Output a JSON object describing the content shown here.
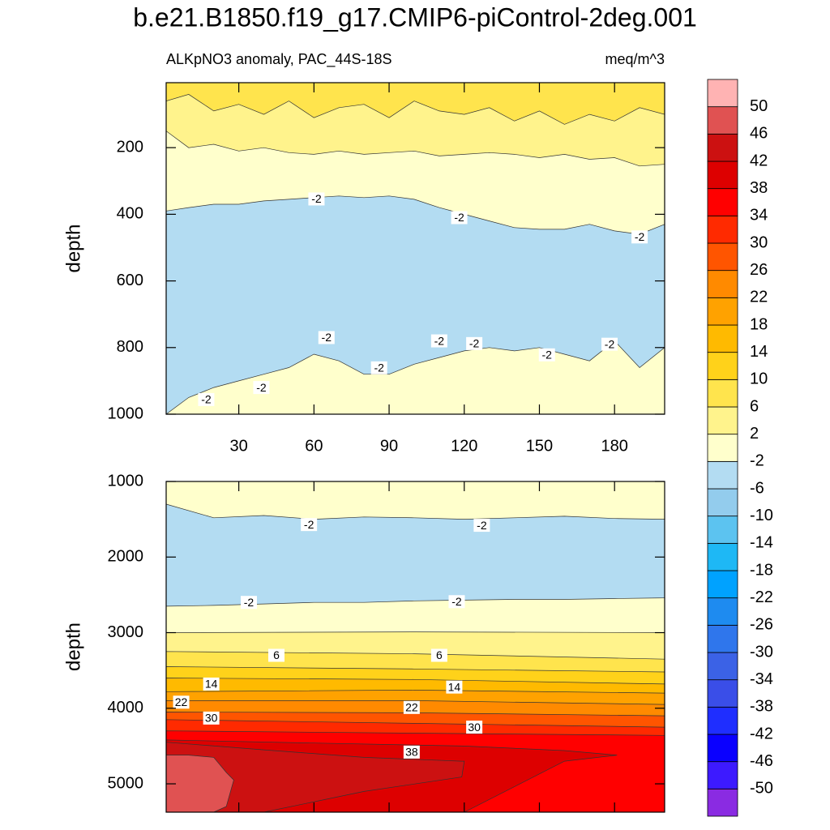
{
  "chart_data": {
    "type": "contour",
    "title": "b.e21.B1850.f19_g17.CMIP6-piControl-2deg.001",
    "colorbar": {
      "levels": [
        -50,
        -46,
        -42,
        -38,
        -34,
        -30,
        -26,
        -22,
        -18,
        -14,
        -10,
        -6,
        -2,
        2,
        6,
        10,
        14,
        18,
        22,
        26,
        30,
        34,
        38,
        42,
        46,
        50
      ],
      "colors": [
        "#8a2be2",
        "#3d1aff",
        "#0a00ff",
        "#1f2eff",
        "#3a4ee8",
        "#3b62e6",
        "#2f76ec",
        "#1e8bf0",
        "#00a2ff",
        "#1eb8f5",
        "#5cc3f0",
        "#93cced",
        "#b3dcf2",
        "#ffffcc",
        "#fff38c",
        "#ffe44d",
        "#ffd21a",
        "#ffba00",
        "#ffa200",
        "#ff8a00",
        "#ff5500",
        "#ff2a00",
        "#ff0000",
        "#dd0000",
        "#cc1111",
        "#e05252",
        "#ffb3b3"
      ]
    },
    "panels": [
      {
        "subtitle_left": "ALKpNO3 anomaly, PAC_44S-18S",
        "subtitle_right": "meq/m^3",
        "ylabel": "depth",
        "xlim": [
          1,
          200
        ],
        "ylim": [
          5,
          1000
        ],
        "xticks": [
          30,
          60,
          90,
          120,
          150,
          180
        ],
        "yticks": [
          200,
          400,
          600,
          800,
          1000
        ],
        "background": -2,
        "regions": [
          {
            "low": -6,
            "x": [
              1,
              10,
              20,
              30,
              40,
              50,
              60,
              70,
              80,
              90,
              100,
              110,
              120,
              130,
              140,
              150,
              160,
              170,
              180,
              190,
              200
            ],
            "top": [
              390,
              380,
              370,
              370,
              360,
              355,
              350,
              345,
              350,
              345,
              355,
              380,
              400,
              420,
              440,
              445,
              445,
              430,
              450,
              460,
              430
            ],
            "bottom": [
              1000,
              950,
              920,
              900,
              880,
              860,
              820,
              840,
              880,
              880,
              850,
              830,
              810,
              800,
              810,
              800,
              820,
              840,
              780,
              860,
              800
            ]
          },
          {
            "low": 2,
            "x": [
              1,
              10,
              20,
              30,
              40,
              50,
              60,
              70,
              80,
              90,
              100,
              110,
              120,
              130,
              140,
              150,
              160,
              170,
              180,
              190,
              200
            ],
            "bottom": [
              150,
              200,
              190,
              210,
              200,
              215,
              220,
              210,
              220,
              215,
              210,
              225,
              220,
              215,
              220,
              230,
              220,
              235,
              230,
              255,
              250
            ]
          },
          {
            "low": 6,
            "x": [
              1,
              10,
              20,
              30,
              40,
              50,
              60,
              70,
              80,
              90,
              100,
              110,
              120,
              130,
              140,
              150,
              160,
              170,
              180,
              190,
              200
            ],
            "bottom": [
              60,
              40,
              90,
              70,
              100,
              60,
              110,
              80,
              70,
              110,
              60,
              90,
              100,
              80,
              120,
              90,
              130,
              100,
              120,
              80,
              100
            ]
          }
        ],
        "labels": [
          {
            "text": "-2",
            "x": 61,
            "y": 354
          },
          {
            "text": "-2",
            "x": 118,
            "y": 410
          },
          {
            "text": "-2",
            "x": 190,
            "y": 468
          },
          {
            "text": "-2",
            "x": 65,
            "y": 770
          },
          {
            "text": "-2",
            "x": 110,
            "y": 780
          },
          {
            "text": "-2",
            "x": 124,
            "y": 788
          },
          {
            "text": "-2",
            "x": 86,
            "y": 861
          },
          {
            "text": "-2",
            "x": 153,
            "y": 822
          },
          {
            "text": "-2",
            "x": 178,
            "y": 790
          },
          {
            "text": "-2",
            "x": 39,
            "y": 920
          },
          {
            "text": "-2",
            "x": 17,
            "y": 956
          }
        ]
      },
      {
        "ylabel": "depth",
        "xlim": [
          1,
          200
        ],
        "ylim": [
          1000,
          5375
        ],
        "xticks": [
          30,
          60,
          90,
          120,
          150,
          180
        ],
        "yticks": [
          1000,
          2000,
          3000,
          4000,
          5000
        ],
        "background": -2,
        "regions": [
          {
            "low": -6,
            "x": [
              1,
              20,
              40,
              60,
              80,
              100,
              120,
              140,
              160,
              180,
              200
            ],
            "top": [
              1300,
              1480,
              1450,
              1500,
              1470,
              1480,
              1500,
              1480,
              1460,
              1490,
              1500
            ],
            "bottom": [
              2650,
              2640,
              2620,
              2600,
              2600,
              2580,
              2570,
              2560,
              2560,
              2550,
              2540
            ]
          },
          {
            "low": 2,
            "x": [
              1,
              100,
              200
            ],
            "top": [
              3000,
              2990,
              3000
            ]
          },
          {
            "low": 6,
            "x": [
              1,
              100,
              200
            ],
            "top": [
              3250,
              3280,
              3350
            ]
          },
          {
            "low": 10,
            "x": [
              1,
              100,
              200
            ],
            "top": [
              3450,
              3480,
              3520
            ]
          },
          {
            "low": 14,
            "x": [
              1,
              100,
              200
            ],
            "top": [
              3600,
              3620,
              3680
            ]
          },
          {
            "low": 18,
            "x": [
              1,
              100,
              200
            ],
            "top": [
              3780,
              3760,
              3800
            ]
          },
          {
            "low": 22,
            "x": [
              1,
              100,
              200
            ],
            "top": [
              3900,
              3900,
              3950
            ]
          },
          {
            "low": 26,
            "x": [
              1,
              100,
              200
            ],
            "top": [
              4050,
              4060,
              4100
            ]
          },
          {
            "low": 30,
            "x": [
              1,
              100,
              200
            ],
            "top": [
              4150,
              4200,
              4250
            ]
          },
          {
            "low": 34,
            "x": [
              1,
              100,
              200
            ],
            "top": [
              4300,
              4330,
              4360
            ]
          },
          {
            "low": 38,
            "x": [
              1,
              60,
              120,
              160,
              181
            ],
            "top": [
              4420,
              4460,
              4500,
              4560,
              4620
            ],
            "bottom": [
              5375,
              5375,
              5375,
              4700,
              4620
            ]
          },
          {
            "low": 42,
            "x": [
              1,
              40,
              80,
              119,
              120
            ],
            "top": [
              4450,
              4550,
              4650,
              4700,
              4700
            ],
            "bottom": [
              5375,
              5375,
              5100,
              4910,
              4700
            ]
          },
          {
            "low": 46,
            "x": [
              1,
              10,
              20,
              25,
              28
            ],
            "top": [
              4620,
              4620,
              4650,
              4850,
              4950
            ],
            "bottom": [
              5375,
              5375,
              5375,
              5300,
              4950
            ]
          }
        ],
        "labels": [
          {
            "text": "-2",
            "x": 58,
            "y": 1570
          },
          {
            "text": "-2",
            "x": 127,
            "y": 1580
          },
          {
            "text": "-2",
            "x": 34,
            "y": 2600
          },
          {
            "text": "-2",
            "x": 117,
            "y": 2590
          },
          {
            "text": "6",
            "x": 45,
            "y": 3300
          },
          {
            "text": "6",
            "x": 110,
            "y": 3300
          },
          {
            "text": "14",
            "x": 19,
            "y": 3680
          },
          {
            "text": "14",
            "x": 116,
            "y": 3720
          },
          {
            "text": "22",
            "x": 7,
            "y": 3920
          },
          {
            "text": "22",
            "x": 99,
            "y": 3990
          },
          {
            "text": "30",
            "x": 19,
            "y": 4130
          },
          {
            "text": "30",
            "x": 124,
            "y": 4250
          },
          {
            "text": "38",
            "x": 99,
            "y": 4580
          }
        ]
      }
    ]
  }
}
